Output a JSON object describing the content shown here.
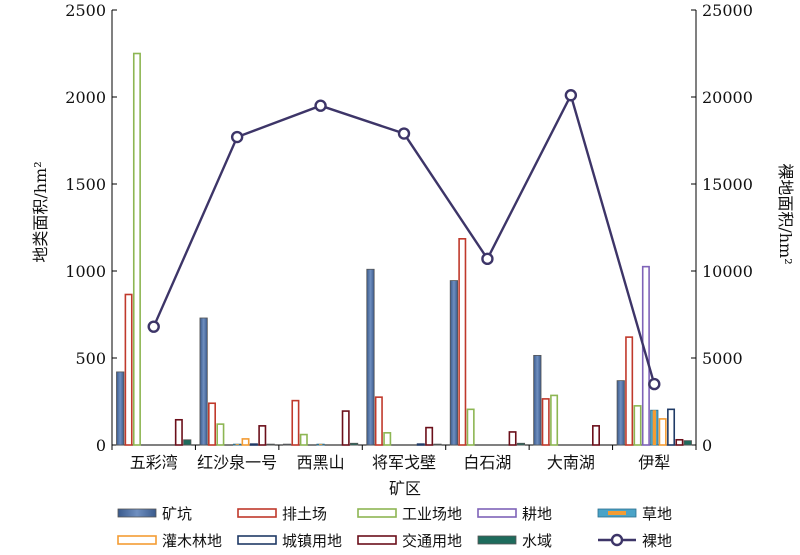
{
  "chart_data": {
    "type": "bar",
    "categories": [
      "五彩湾",
      "红沙泉一号",
      "西黑山",
      "将军戈壁",
      "白石湖",
      "大南湖",
      "伊犁"
    ],
    "xlabel": "矿区",
    "ylabel": "地类面积/hm²",
    "y2label": "裸地面积/hm²",
    "ylim": [
      0,
      2500
    ],
    "y2lim": [
      0,
      25000
    ],
    "yticks": [
      0,
      500,
      1000,
      1500,
      2000,
      2500
    ],
    "y2ticks": [
      0,
      5000,
      10000,
      15000,
      20000,
      25000
    ],
    "grid": false,
    "legend_position": "bottom",
    "series": [
      {
        "name": "矿坑",
        "values": [
          420,
          730,
          5,
          1010,
          945,
          515,
          370
        ],
        "color": "#4f6fa0",
        "style": "filled"
      },
      {
        "name": "排土场",
        "values": [
          865,
          240,
          255,
          275,
          1185,
          265,
          620
        ],
        "color": "#c0392b",
        "style": "outline"
      },
      {
        "name": "工业场地",
        "values": [
          2250,
          120,
          60,
          70,
          205,
          285,
          225
        ],
        "color": "#8db653",
        "style": "outline"
      },
      {
        "name": "耕地",
        "values": [
          0,
          0,
          0,
          0,
          0,
          0,
          1025
        ],
        "color": "#7f63b8",
        "style": "outline"
      },
      {
        "name": "草地",
        "values": [
          0,
          5,
          5,
          0,
          0,
          0,
          200
        ],
        "color": "#4aa3c7",
        "style": "filled-accent"
      },
      {
        "name": "灌木林地",
        "values": [
          0,
          35,
          0,
          0,
          0,
          0,
          150
        ],
        "color": "#f39c34",
        "style": "outline"
      },
      {
        "name": "城镇用地",
        "values": [
          0,
          5,
          0,
          5,
          0,
          0,
          205
        ],
        "color": "#1f3a66",
        "style": "outline"
      },
      {
        "name": "交通用地",
        "values": [
          145,
          110,
          195,
          100,
          75,
          110,
          30
        ],
        "color": "#6b0f1a",
        "style": "outline"
      },
      {
        "name": "水域",
        "values": [
          30,
          5,
          10,
          5,
          10,
          0,
          25
        ],
        "color": "#1e6b5c",
        "style": "filled"
      }
    ],
    "line_series": {
      "name": "裸地",
      "values": [
        6800,
        17700,
        19500,
        17900,
        10700,
        20100,
        3500
      ],
      "color": "#3d3568",
      "axis": "right"
    }
  }
}
